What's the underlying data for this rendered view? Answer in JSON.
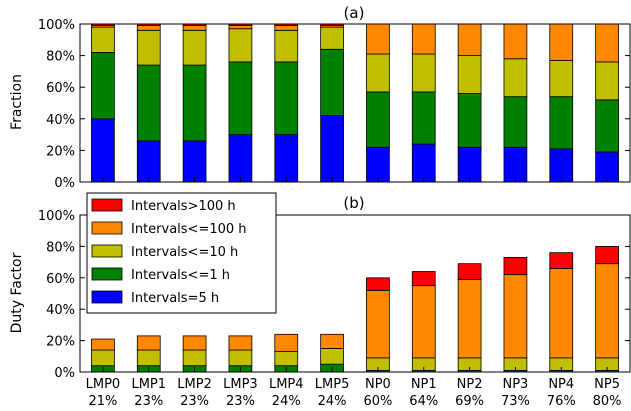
{
  "chart_data": [
    {
      "type": "bar",
      "stacked": true,
      "title": "(a)",
      "ylabel": "Fraction",
      "ylim": [
        0,
        100
      ],
      "yticks": [
        "0%",
        "20%",
        "40%",
        "60%",
        "80%",
        "100%"
      ],
      "categories": [
        "LMP0",
        "LMP1",
        "LMP2",
        "LMP3",
        "LMP4",
        "LMP5",
        "NP0",
        "NP1",
        "NP2",
        "NP3",
        "NP4",
        "NP5"
      ],
      "series": [
        {
          "name": "Intervals=5 h",
          "color": "#0000ff",
          "values": [
            40,
            26,
            26,
            30,
            30,
            42,
            22,
            24,
            22,
            22,
            21,
            19
          ]
        },
        {
          "name": "Intervals<=1 h",
          "color": "#008000",
          "values": [
            42,
            48,
            48,
            46,
            46,
            42,
            35,
            33,
            34,
            32,
            33,
            33
          ]
        },
        {
          "name": "Intervals<=10 h",
          "color": "#bfbf00",
          "values": [
            16,
            22,
            22,
            21,
            20,
            14,
            24,
            24,
            24,
            24,
            23,
            24
          ]
        },
        {
          "name": "Intervals<=100 h",
          "color": "#ff8800",
          "values": [
            1,
            3,
            3,
            2,
            3,
            1,
            19,
            19,
            20,
            22,
            23,
            24
          ]
        },
        {
          "name": "Intervals>100 h",
          "color": "#ff0000",
          "values": [
            1,
            1,
            1,
            1,
            1,
            1,
            0,
            0,
            0,
            0,
            0,
            0
          ]
        }
      ],
      "grid": false
    },
    {
      "type": "bar",
      "stacked": true,
      "title": "(b)",
      "ylabel": "Duty Factor",
      "ylim": [
        0,
        100
      ],
      "yticks": [
        "0%",
        "20%",
        "40%",
        "60%",
        "80%",
        "100%"
      ],
      "categories": [
        "LMP0",
        "LMP1",
        "LMP2",
        "LMP3",
        "LMP4",
        "LMP5",
        "NP0",
        "NP1",
        "NP2",
        "NP3",
        "NP4",
        "NP5"
      ],
      "sublabels": [
        "21%",
        "23%",
        "23%",
        "23%",
        "24%",
        "24%",
        "60%",
        "64%",
        "69%",
        "73%",
        "76%",
        "80%"
      ],
      "series": [
        {
          "name": "Intervals=5 h",
          "color": "#0000ff",
          "values": [
            0,
            0,
            0,
            0,
            0,
            0,
            0,
            0,
            0,
            0,
            0,
            0
          ]
        },
        {
          "name": "Intervals<=1 h",
          "color": "#008000",
          "values": [
            4,
            4,
            4,
            4,
            4,
            5,
            1,
            1,
            1,
            1,
            1,
            1
          ]
        },
        {
          "name": "Intervals<=10 h",
          "color": "#bfbf00",
          "values": [
            10,
            10,
            10,
            10,
            9,
            10,
            8,
            8,
            8,
            8,
            8,
            8
          ]
        },
        {
          "name": "Intervals<=100 h",
          "color": "#ff8800",
          "values": [
            7,
            9,
            9,
            9,
            11,
            9,
            43,
            46,
            50,
            53,
            57,
            60
          ]
        },
        {
          "name": "Intervals>100 h",
          "color": "#ff0000",
          "values": [
            0,
            0,
            0,
            0,
            0,
            0,
            8,
            9,
            10,
            11,
            10,
            11
          ]
        }
      ],
      "grid": false
    }
  ],
  "legend": {
    "placement": "top-left of panel (b)",
    "items": [
      {
        "label": "Intervals>100 h",
        "color": "#ff0000"
      },
      {
        "label": "Intervals<=100 h",
        "color": "#ff8800"
      },
      {
        "label": "Intervals<=10 h",
        "color": "#bfbf00"
      },
      {
        "label": "Intervals<=1 h",
        "color": "#008000"
      },
      {
        "label": "Intervals=5 h",
        "color": "#0000ff"
      }
    ]
  }
}
